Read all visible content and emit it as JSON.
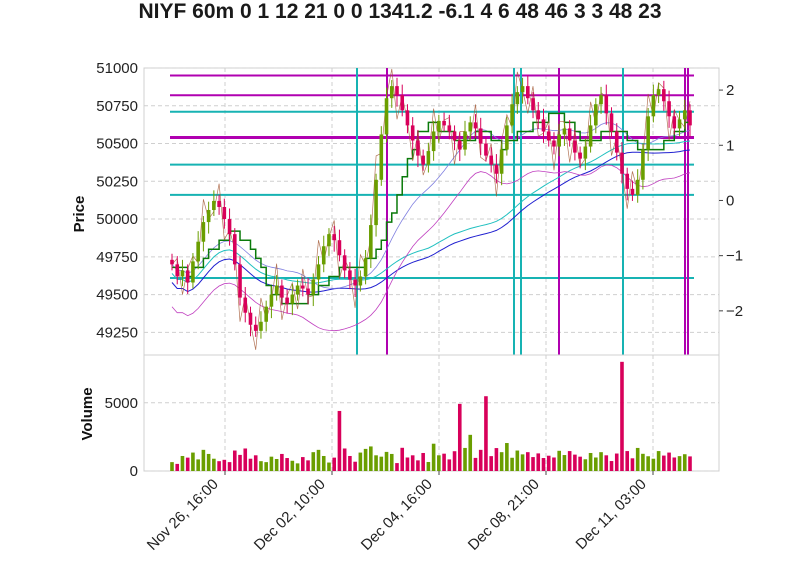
{
  "chart_data": {
    "title": "NIYF 60m 0 1 12 21 0 0 1341.2 -6.1 4 6 48 46 3 3 48 23",
    "type": "candlestick",
    "x_ticks": [
      "Nov 26, 16:00",
      "Dec 02, 10:00",
      "Dec 04, 16:00",
      "Dec 08, 21:00",
      "Dec 11, 03:00"
    ],
    "price_panel": {
      "ylabel": "Price",
      "ylim": [
        49100,
        51000
      ],
      "y_ticks": [
        49250,
        49500,
        49750,
        50000,
        50250,
        50500,
        50750,
        51000
      ],
      "right_ylim": [
        -2.8,
        2.4
      ],
      "right_ticks": [
        -2,
        -1,
        0,
        1,
        2
      ],
      "right_tick_labels": [
        "−2",
        "−1",
        "0",
        "1",
        "2"
      ],
      "magenta_levels": [
        50950,
        50820,
        50540
      ],
      "cyan_levels": [
        50710,
        50360,
        50160,
        49610
      ],
      "close_series": [
        49700,
        49620,
        49660,
        49580,
        49720,
        49850,
        49980,
        50060,
        50120,
        50080,
        50000,
        49900,
        49700,
        49480,
        49380,
        49300,
        49260,
        49320,
        49420,
        49500,
        49560,
        49480,
        49440,
        49500,
        49560,
        49540,
        49500,
        49600,
        49700,
        49820,
        49900,
        49860,
        49760,
        49660,
        49600,
        49560,
        49620,
        49740,
        49960,
        50260,
        50560,
        50800,
        50880,
        50820,
        50720,
        50620,
        50520,
        50420,
        50360,
        50450,
        50580,
        50650,
        50620,
        50580,
        50520,
        50460,
        50580,
        50640,
        50600,
        50500,
        50420,
        50360,
        50300,
        50460,
        50620,
        50760,
        50840,
        50880,
        50800,
        50720,
        50660,
        50580,
        50520,
        50480,
        50560,
        50600,
        50520,
        50440,
        50400,
        50480,
        50620,
        50760,
        50820,
        50700,
        50580,
        50440,
        50300,
        50200,
        50160,
        50260,
        50460,
        50680,
        50820,
        50860,
        50780,
        50680,
        50600,
        50660,
        50720,
        50620
      ]
    },
    "volume_panel": {
      "ylabel": "Volume",
      "ylim": [
        0,
        8500
      ],
      "y_ticks": [
        0,
        5000
      ],
      "values": [
        650,
        520,
        1100,
        980,
        1350,
        850,
        1550,
        1250,
        900,
        720,
        820,
        650,
        1500,
        1180,
        1650,
        900,
        1150,
        720,
        650,
        1050,
        880,
        1250,
        950,
        750,
        560,
        1020,
        780,
        1380,
        1550,
        1100,
        620,
        980,
        4400,
        1650,
        1100,
        680,
        1350,
        1620,
        1800,
        1150,
        1050,
        1400,
        1250,
        580,
        1700,
        990,
        1150,
        780,
        1320,
        660,
        2000,
        1150,
        1270,
        850,
        1450,
        4920,
        1690,
        2650,
        960,
        1550,
        5480,
        1090,
        1680,
        1380,
        2050,
        970,
        1500,
        1220,
        1380,
        1020,
        1290,
        950,
        1120,
        990,
        1480,
        1170,
        1460,
        1200,
        1050,
        860,
        1320,
        990,
        1380,
        1150,
        730,
        1280,
        8000,
        1460,
        930,
        1690,
        1260,
        1080,
        900,
        1460,
        1130,
        1350,
        990,
        1090,
        1230,
        1070
      ]
    }
  }
}
